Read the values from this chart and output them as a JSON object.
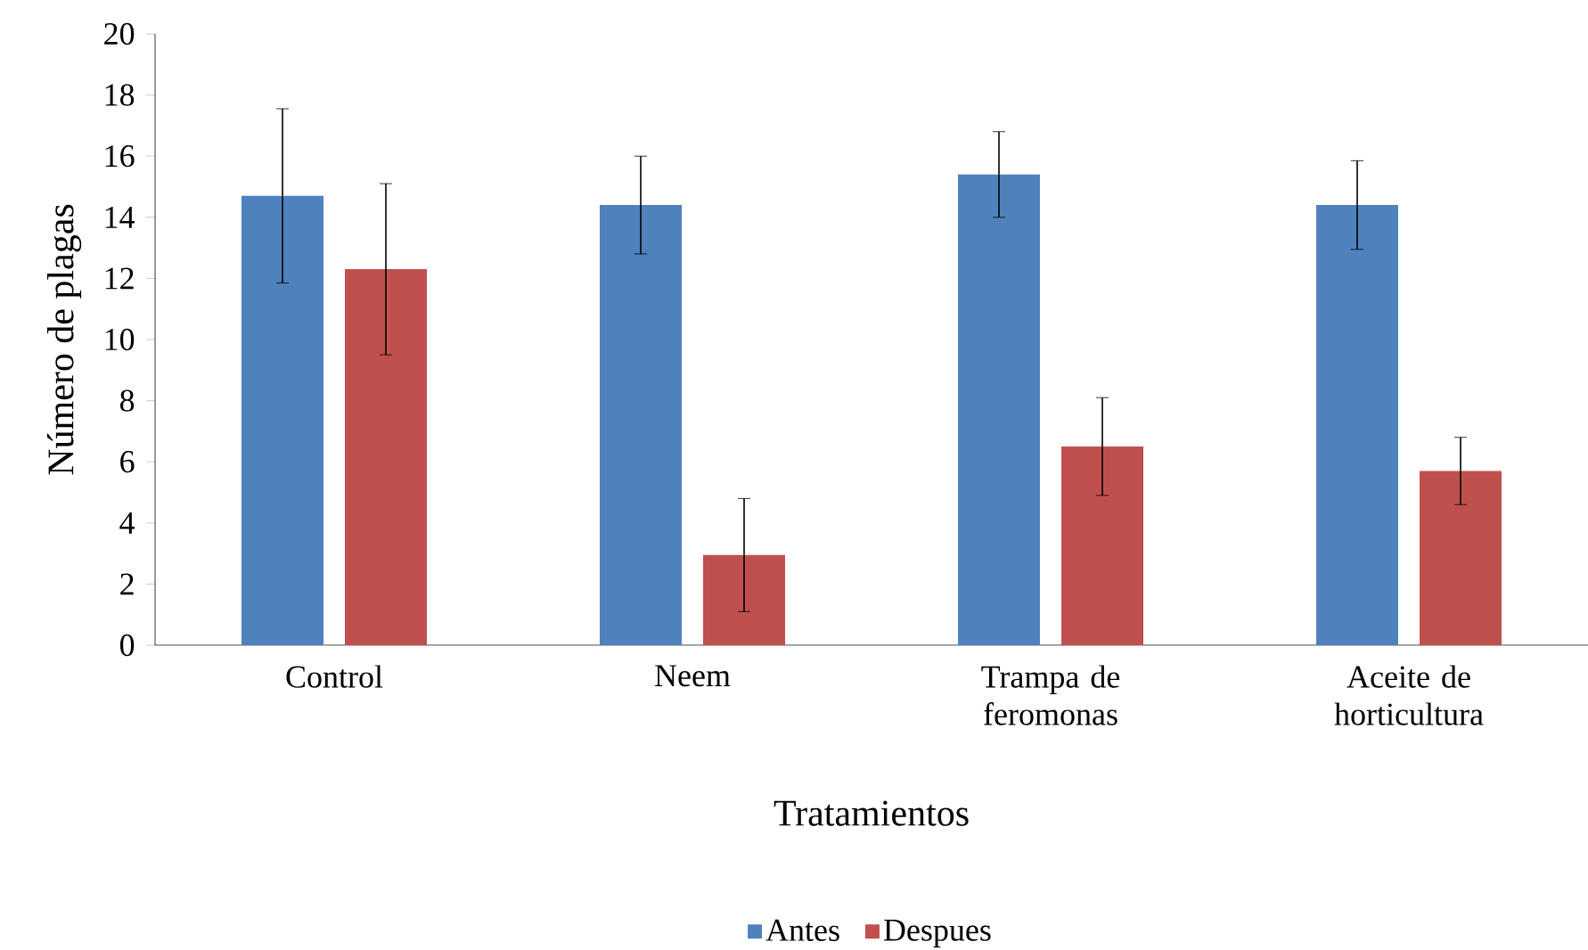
{
  "chart_data": {
    "type": "bar",
    "categories": [
      "Control",
      "Neem",
      "Trampa de feromonas",
      "Aceite de horticultura"
    ],
    "series": [
      {
        "name": "Antes",
        "color": "#4f81bd",
        "values": [
          14.7,
          14.4,
          15.4,
          14.4
        ],
        "errors": [
          2.85,
          1.6,
          1.4,
          1.45
        ]
      },
      {
        "name": "Despues",
        "color": "#c0504d",
        "values": [
          12.3,
          2.95,
          6.5,
          5.7
        ],
        "errors": [
          2.8,
          1.85,
          1.6,
          1.1
        ]
      }
    ],
    "xlabel": "Tratamientos",
    "ylabel": "Número de plagas",
    "ylim": [
      0,
      20
    ],
    "yticks": [
      0,
      2,
      4,
      6,
      8,
      10,
      12,
      14,
      16,
      18,
      20
    ],
    "legend": "bottom"
  }
}
